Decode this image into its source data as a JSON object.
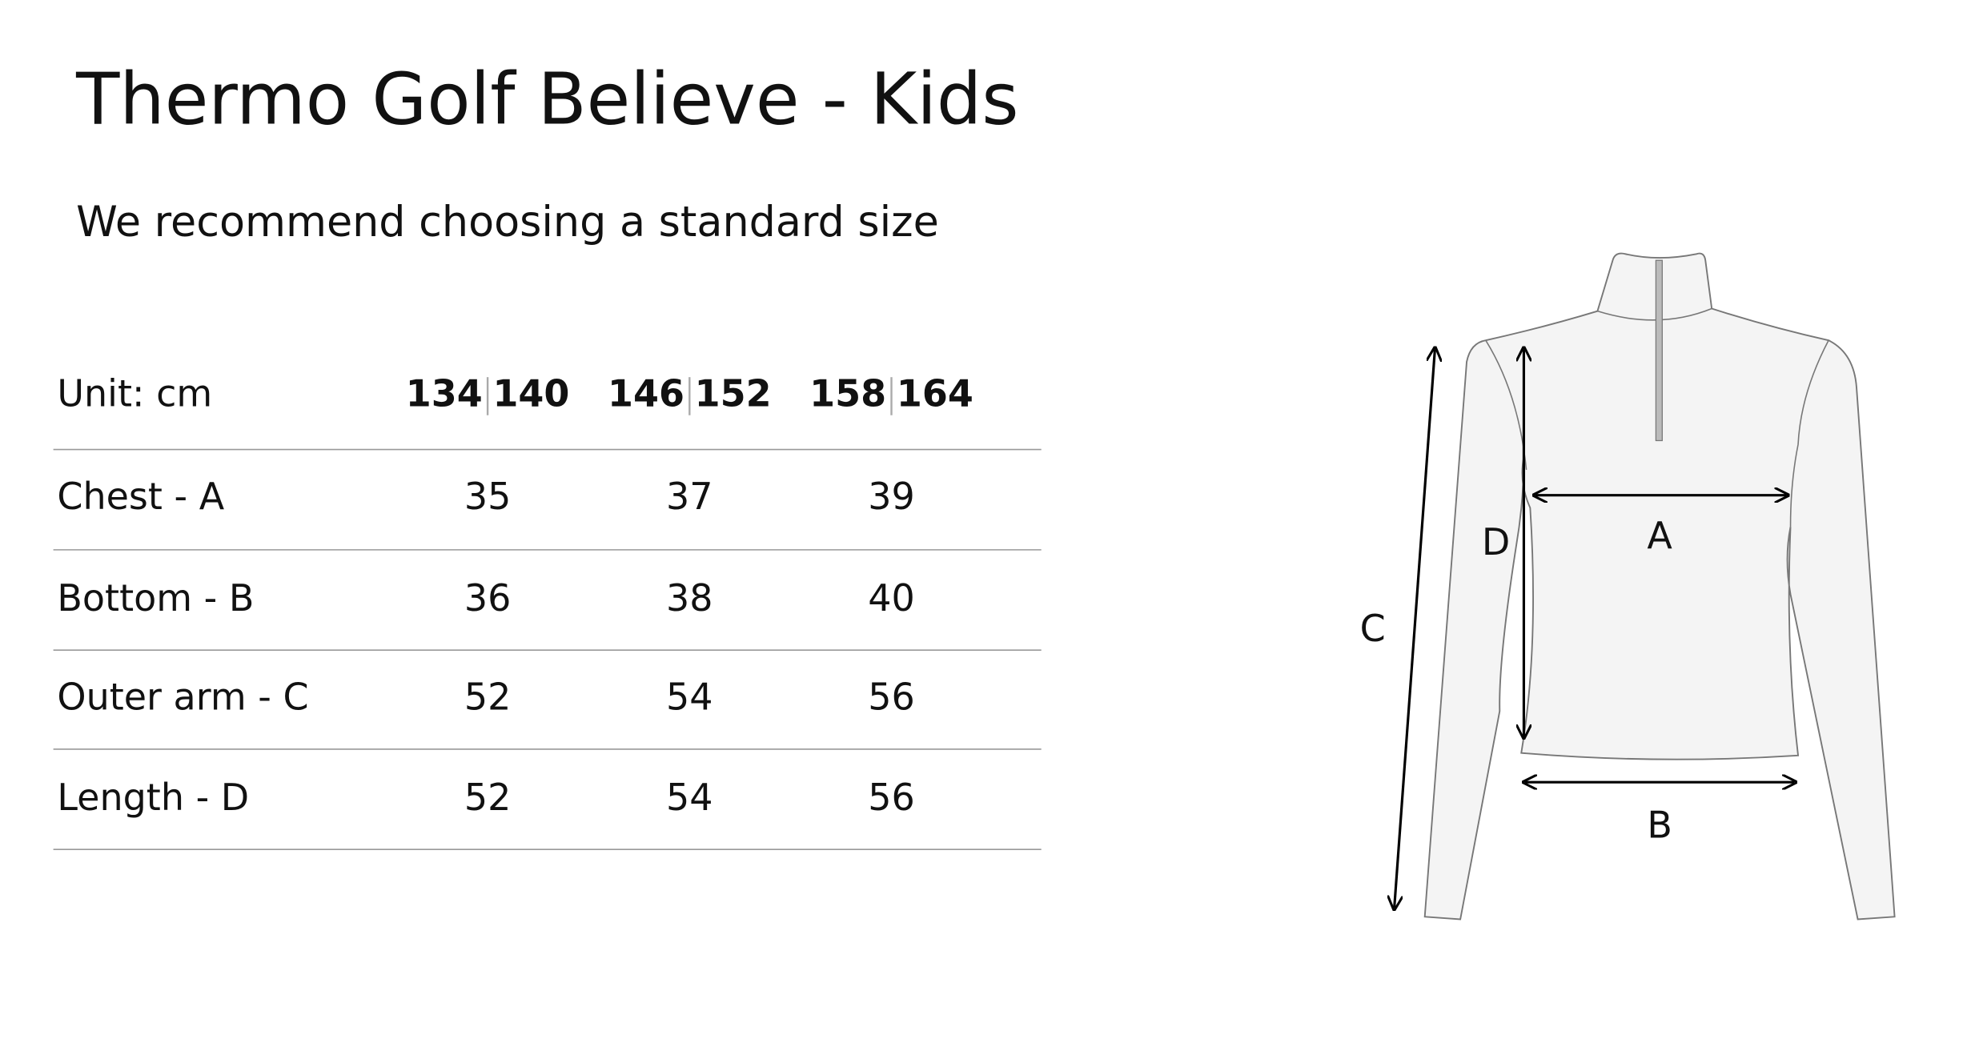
{
  "header": {
    "title": "Thermo Golf Believe - Kids",
    "subtitle": "We recommend choosing a standard size"
  },
  "table": {
    "unit": "Unit: cm",
    "sizes": [
      [
        "134",
        "140"
      ],
      [
        "146",
        "152"
      ],
      [
        "158",
        "164"
      ]
    ],
    "rows": [
      [
        "Chest - A",
        "35",
        "37",
        "39"
      ],
      [
        "Bottom - B",
        "36",
        "38",
        "40"
      ],
      [
        "Outer arm - C",
        "52",
        "54",
        "56"
      ],
      [
        "Length - D",
        "52",
        "54",
        "56"
      ]
    ]
  },
  "diagram": {
    "labels": [
      "A",
      "B",
      "C",
      "D"
    ]
  }
}
